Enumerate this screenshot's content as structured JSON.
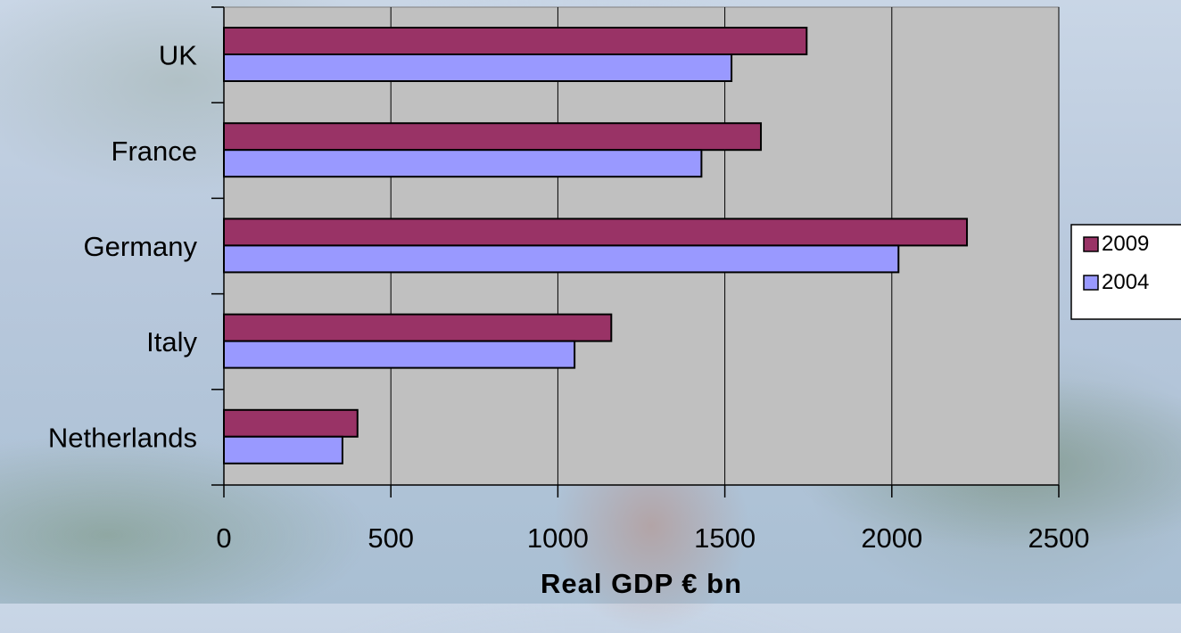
{
  "chart_data": {
    "type": "bar",
    "orientation": "horizontal",
    "categories": [
      "UK",
      "France",
      "Germany",
      "Italy",
      "Netherlands"
    ],
    "series": [
      {
        "name": "2009",
        "values": [
          1745,
          1608,
          2225,
          1160,
          400
        ],
        "color": "#993366"
      },
      {
        "name": "2004",
        "values": [
          1520,
          1430,
          2020,
          1050,
          355
        ],
        "color": "#9999FF"
      }
    ],
    "xlabel": "Real GDP € bn",
    "ylabel": "",
    "xlim": [
      0,
      2500
    ],
    "xticks": [
      "0",
      "500",
      "1000",
      "1500",
      "2000",
      "2500"
    ],
    "grid": "vertical",
    "plot_background": "#C0C0C0",
    "legend_position": "right"
  }
}
